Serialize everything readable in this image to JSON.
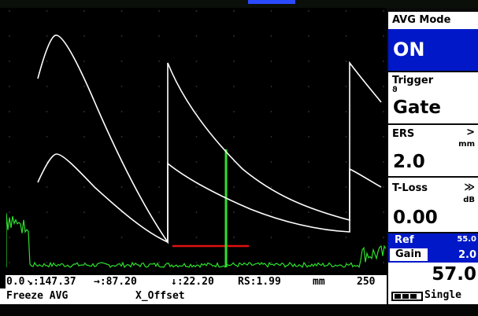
{
  "scope": {
    "axis_start": "0.0",
    "axis_end": "250",
    "colors": {
      "echo": "#ffffff",
      "noise": "#2de02d",
      "gate": "#e01010",
      "grid_dots": "#3a3a3a"
    }
  },
  "readouts": {
    "path": "↘:147.37",
    "projection": "→:87.20",
    "depth": "↓:22.20",
    "rs": "RS:1.99",
    "unit": "mm"
  },
  "softkeys": {
    "left": "Freeze AVG",
    "middle": "X_Offset"
  },
  "panel": {
    "avg_mode": {
      "label": "AVG Mode",
      "value": "ON"
    },
    "trigger": {
      "label": "Trigger",
      "sub_icon": "ϑ",
      "value": "Gate"
    },
    "ers": {
      "label": "ERS",
      "arrow": ">",
      "unit": "mm",
      "value": "2.0"
    },
    "tloss": {
      "label": "T-Loss",
      "arrow": "≫",
      "unit": "dB",
      "value": "0.00"
    },
    "ref": {
      "label": "Ref",
      "ref_value": "55.0",
      "gain_label": "Gain",
      "gain_step": "2.0",
      "gain_value": "57.0"
    },
    "acquisition": {
      "battery_icon": "battery-icon",
      "mode": "Single"
    }
  }
}
